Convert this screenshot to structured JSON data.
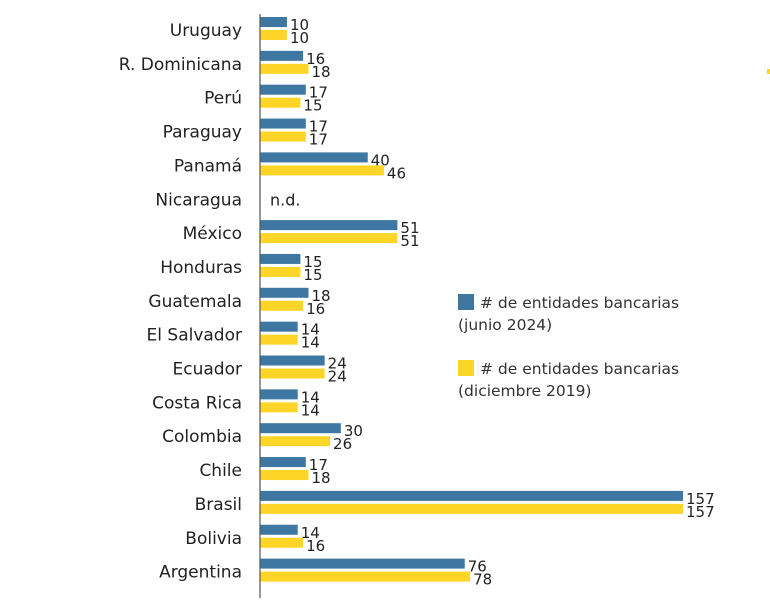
{
  "chart_data": {
    "type": "bar",
    "orientation": "horizontal",
    "categories": [
      "Uruguay",
      "R. Dominicana",
      "Perú",
      "Paraguay",
      "Panamá",
      "Nicaragua",
      "México",
      "Honduras",
      "Guatemala",
      "El Salvador",
      "Ecuador",
      "Costa Rica",
      "Colombia",
      "Chile",
      "Brasil",
      "Bolivia",
      "Argentina"
    ],
    "series": [
      {
        "name": "# de entidades bancarias (junio 2024)",
        "legend_line1": "# de entidades bancarias",
        "legend_line2": "(junio 2024)",
        "color": "#3e78a2",
        "values": [
          10,
          16,
          17,
          17,
          40,
          null,
          51,
          15,
          18,
          14,
          24,
          14,
          30,
          17,
          157,
          14,
          76
        ]
      },
      {
        "name": "# de entidades bancarias (diciembre 2019)",
        "legend_line1": "# de entidades bancarias",
        "legend_line2": "(diciembre 2019)",
        "color": "#fdd526",
        "values": [
          10,
          18,
          15,
          17,
          46,
          null,
          51,
          15,
          16,
          14,
          24,
          14,
          26,
          18,
          157,
          16,
          78
        ]
      }
    ],
    "missing_label": "n.d.",
    "xlim": [
      0,
      157
    ],
    "legend_position": "right",
    "grid": false
  }
}
